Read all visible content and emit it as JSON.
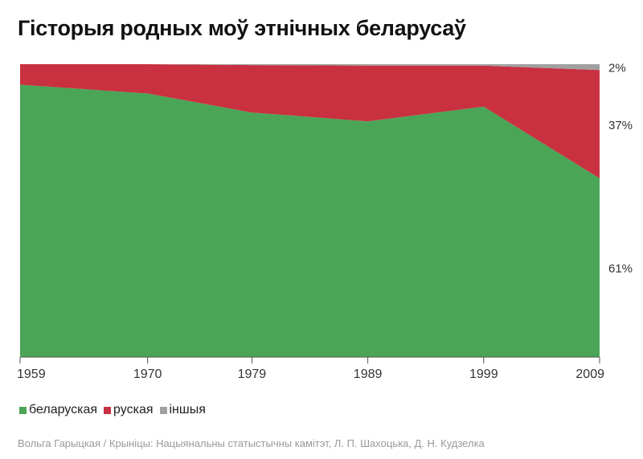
{
  "title": "Гісторыя родных моў этнічных беларусаў",
  "source": "Вольга Гарыцкая / Крыніцы: Нацыянальны статыстычны камітэт,  Л. П. Шахоцька, Д. Н. Кудзелка",
  "colors": {
    "belarusian": "#4aa556",
    "russian": "#c93040",
    "other": "#a0a0a0",
    "axis": "#555555",
    "text": "#333333"
  },
  "chart_data": {
    "type": "area",
    "stacked": true,
    "x": [
      1959,
      1970,
      1979,
      1989,
      1999,
      2009
    ],
    "ylim": [
      0,
      100
    ],
    "series": [
      {
        "name": "беларуская",
        "values": [
          93,
          90,
          83.5,
          80.5,
          85.5,
          61
        ]
      },
      {
        "name": "руская",
        "values": [
          7,
          10,
          16.2,
          19,
          14,
          37
        ]
      },
      {
        "name": "іншыя",
        "values": [
          0,
          0,
          0.3,
          0.5,
          0.5,
          2
        ]
      }
    ],
    "end_labels": [
      "61%",
      "37%",
      "2%"
    ],
    "tick_labels": [
      "1959",
      "1970",
      "1979",
      "1989",
      "1999",
      "2009"
    ]
  }
}
